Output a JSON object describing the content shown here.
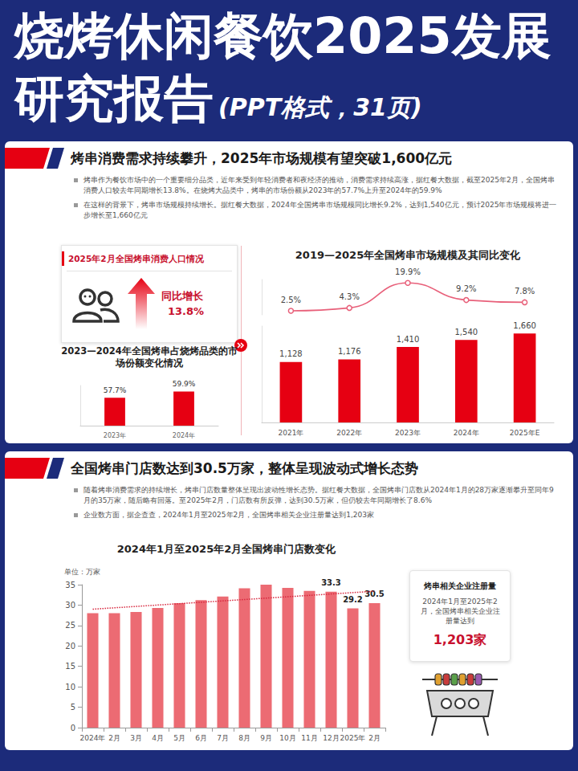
{
  "header": {
    "title": "烧烤休闲餐饮2025发展研究报告",
    "subtitle": "(PPT格式，31页)"
  },
  "sections": [
    {
      "title": "烤串消费需求持续攀升，2025年市场规模有望突破1,600亿元",
      "bullets": [
        "烤串作为餐饮市场中的一个重要细分品类，近年来受到年轻消费者和夜经济的推动，消费需求持续高涨，据红餐大数据，截至2025年2月，全国烤串消费人口较去年同期增长13.8%。在烧烤大品类中，烤串的市场份额从2023年的57.7%上升至2024年的59.9%",
        "在这样的背景下，烤串市场规模持续增长。据红餐大数据，2024年全国烤串市场规模同比增长9.2%，达到1,540亿元，预计2025年市场规模将进一步增长至1,660亿元"
      ],
      "callout": {
        "title": "2025年2月全国烤串消费人口情况",
        "label": "同比增长",
        "value": "13.8%"
      }
    },
    {
      "title": "全国烤串门店数达到30.5万家，整体呈现波动式增长态势",
      "bullets": [
        "随着烤串消费需求的持续增长，烤串门店数量整体呈现出波动性增长态势。据红餐大数据，全国烤串门店数从2024年1月的28万家逐渐攀升至同年9月的35万家，随后略有回落。至2025年2月，门店数有所反弹，达到30.5万家，但仍较去年同期增长了8.6%",
        "企业数方面，据企查查，2024年1月至2025年2月，全国烤串相关企业注册量达到1,203家"
      ],
      "callout": {
        "title": "烤串相关企业注册量",
        "text": "2024年1月至2025年2月，全国烤串相关企业注册量达到",
        "value": "1,203家"
      }
    }
  ],
  "chart_data": [
    {
      "type": "bar",
      "title": "2023—2024年全国烤串占烧烤品类的市场份额变化情况",
      "categories": [
        "2023年",
        "2024年"
      ],
      "values": [
        57.7,
        59.9
      ],
      "value_labels": [
        "57.7%",
        "59.9%"
      ],
      "color": "#e60012",
      "ylim": [
        48,
        62
      ],
      "data_labels": true,
      "tick_labels": "x",
      "grid": false
    },
    {
      "type": "bar",
      "title": "2019—2025年全国烤串市场规模及其同比变化",
      "categories": [
        "2021年",
        "2022年",
        "2023年",
        "2024年",
        "2025年E"
      ],
      "series": [
        {
          "type": "bar",
          "color": "#e60012",
          "values": [
            1128,
            1176,
            1410,
            1540,
            1660
          ],
          "value_labels": [
            "1,128",
            "1,176",
            "1,410",
            "1,540",
            "1,660"
          ]
        },
        {
          "type": "line",
          "axis": "y2",
          "color": "#e8607a",
          "marker": "circle",
          "line_style": "solid",
          "values": [
            2.5,
            4.3,
            19.9,
            9.2,
            7.8
          ],
          "value_labels": [
            "2.5%",
            "4.3%",
            "19.9%",
            "9.2%",
            "7.8%"
          ]
        }
      ],
      "ylim": [
        0,
        1800
      ],
      "y2lim": [
        0,
        22
      ],
      "data_labels": true,
      "tick_labels": "x",
      "grid": false
    },
    {
      "type": "bar",
      "title": "2024年1月至2025年2月全国烤串门店数变化",
      "y_label": "单位：万家",
      "categories": [
        "2024年",
        "2月",
        "3月",
        "4月",
        "5月",
        "6月",
        "7月",
        "8月",
        "9月",
        "10月",
        "11月",
        "12月",
        "2025年",
        "2月"
      ],
      "values": [
        28,
        28,
        28.3,
        29.3,
        30.5,
        31.2,
        32.1,
        34.1,
        35,
        34.2,
        33.5,
        33.3,
        29.2,
        30.5
      ],
      "value_labels": [
        null,
        null,
        null,
        null,
        null,
        null,
        null,
        null,
        null,
        null,
        null,
        "33.3",
        "29.2",
        "30.5"
      ],
      "color": "#ec6b73",
      "ylim": [
        0,
        35
      ],
      "yticks": [
        0,
        5,
        10,
        15,
        20,
        25,
        30,
        35
      ],
      "data_labels": true,
      "grid": false,
      "trendline": {
        "values": [
          29.0,
          null,
          null,
          null,
          null,
          null,
          null,
          null,
          null,
          null,
          null,
          null,
          null,
          33.4
        ],
        "color": "#d7263d",
        "line_style": "dotted"
      }
    }
  ]
}
